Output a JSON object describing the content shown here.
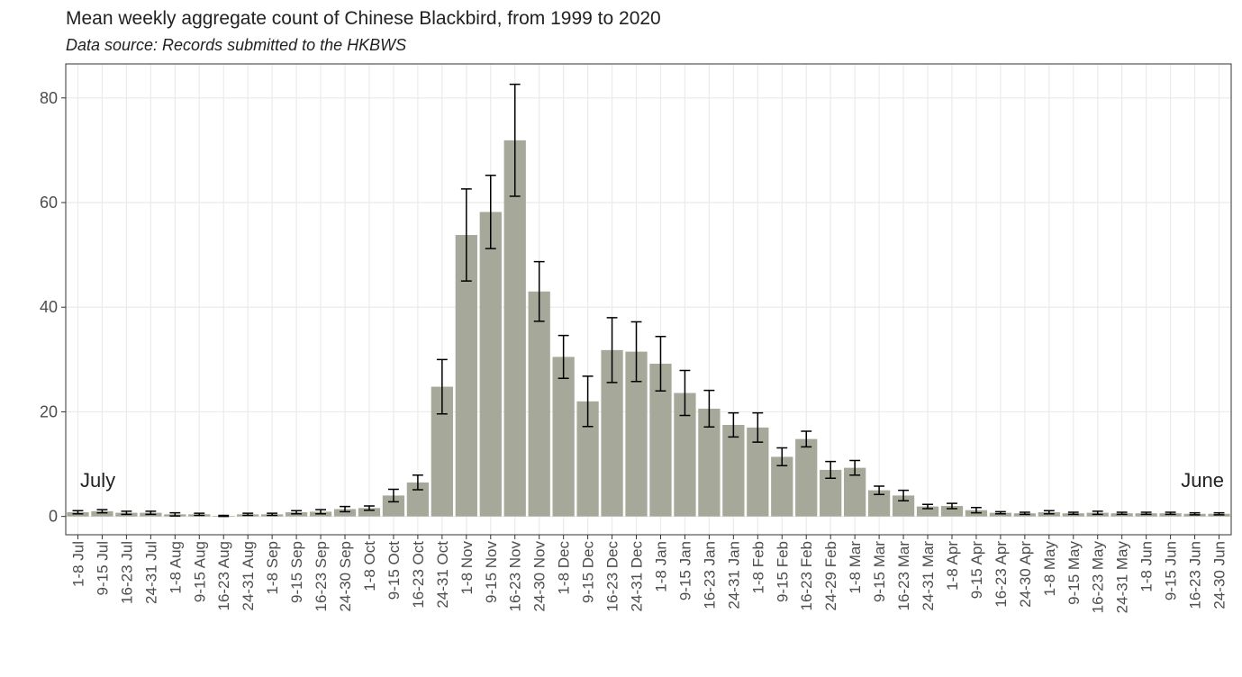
{
  "chart_data": {
    "type": "bar",
    "title": "Mean weekly aggregate count of Chinese Blackbird, from 1999 to 2020",
    "subtitle": "Data source: Records submitted to the HKBWS",
    "annotations": [
      "July",
      "June"
    ],
    "categories": [
      "1-8 Jul",
      "9-15 Jul",
      "16-23 Jul",
      "24-31 Jul",
      "1-8 Aug",
      "9-15 Aug",
      "16-23 Aug",
      "24-31 Aug",
      "1-8 Sep",
      "9-15 Sep",
      "16-23 Sep",
      "24-30 Sep",
      "1-8 Oct",
      "9-15 Oct",
      "16-23 Oct",
      "24-31 Oct",
      "1-8 Nov",
      "9-15 Nov",
      "16-23 Nov",
      "24-30 Nov",
      "1-8 Dec",
      "9-15 Dec",
      "16-23 Dec",
      "24-31 Dec",
      "1-8 Jan",
      "9-15 Jan",
      "16-23 Jan",
      "24-31 Jan",
      "1-8 Feb",
      "9-15 Feb",
      "16-23 Feb",
      "24-29 Feb",
      "1-8 Mar",
      "9-15 Mar",
      "16-23 Mar",
      "24-31 Mar",
      "1-8 Apr",
      "9-15 Apr",
      "16-23 Apr",
      "24-30 Apr",
      "1-8 May",
      "9-15 May",
      "16-23 May",
      "24-31 May",
      "1-8 Jun",
      "9-15 Jun",
      "16-23 Jun",
      "24-30 Jun"
    ],
    "values": [
      0.8,
      1.0,
      0.7,
      0.7,
      0.4,
      0.4,
      0.1,
      0.4,
      0.4,
      0.8,
      0.9,
      1.4,
      1.6,
      4.0,
      6.5,
      24.8,
      53.8,
      58.2,
      71.9,
      43.0,
      30.5,
      22.0,
      31.8,
      31.5,
      29.2,
      23.6,
      20.6,
      17.5,
      17.0,
      11.4,
      14.8,
      8.9,
      9.3,
      5.0,
      4.0,
      1.9,
      2.0,
      1.2,
      0.7,
      0.6,
      0.8,
      0.6,
      0.7,
      0.6,
      0.6,
      0.6,
      0.5,
      0.5
    ],
    "errors": [
      0.3,
      0.3,
      0.3,
      0.3,
      0.3,
      0.2,
      0.1,
      0.2,
      0.2,
      0.3,
      0.4,
      0.5,
      0.4,
      1.2,
      1.4,
      5.2,
      8.8,
      7.0,
      10.7,
      5.7,
      4.1,
      4.8,
      6.2,
      5.7,
      5.2,
      4.3,
      3.5,
      2.3,
      2.8,
      1.7,
      1.5,
      1.6,
      1.4,
      0.8,
      1.0,
      0.4,
      0.5,
      0.5,
      0.2,
      0.2,
      0.3,
      0.2,
      0.3,
      0.2,
      0.2,
      0.2,
      0.2,
      0.2
    ],
    "color": "#a6a899",
    "ylim": [
      -3.5,
      86.5
    ],
    "yticks": [
      0,
      20,
      40,
      60,
      80
    ],
    "grid": true
  }
}
